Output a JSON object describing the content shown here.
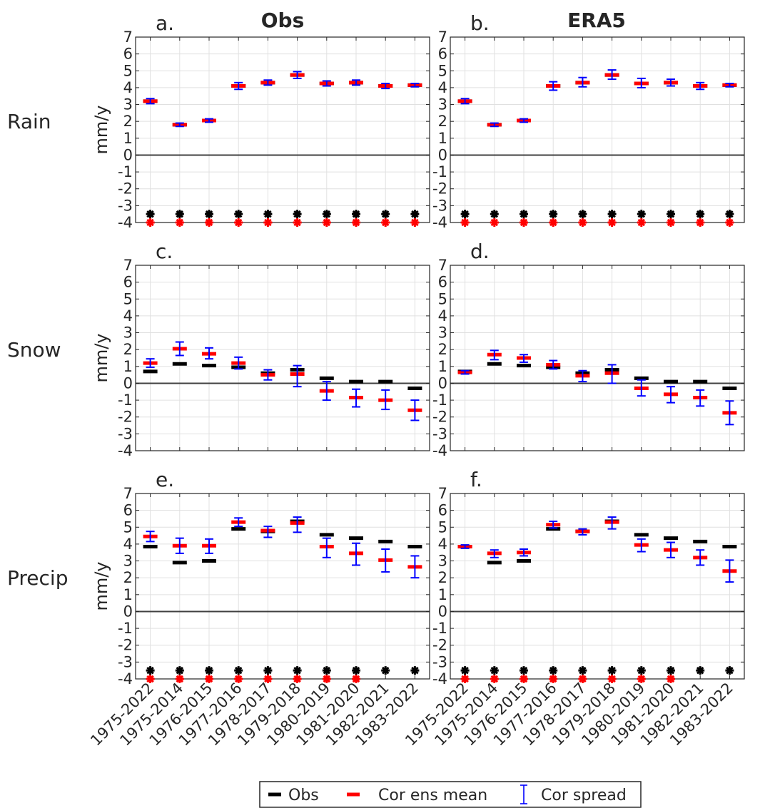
{
  "figure": {
    "column_titles": [
      "Obs",
      "ERA5"
    ],
    "row_labels": [
      "Rain",
      "Snow",
      "Precip"
    ],
    "ylabel": "mm/y",
    "legend": {
      "obs": "Obs",
      "mean": "Cor ens mean",
      "spread": "Cor spread"
    }
  },
  "chart_data": [
    {
      "panel": "a.",
      "type": "scatter",
      "title": "Obs",
      "row": "Rain",
      "ylabel": "mm/y",
      "categories": [
        "1975-2022",
        "1975-2014",
        "1976-2015",
        "1977-2016",
        "1978-2017",
        "1979-2018",
        "1980-2019",
        "1981-2020",
        "1982-2021",
        "1983-2022"
      ],
      "yticks": [
        7,
        6,
        5,
        4,
        3,
        2,
        1,
        0,
        -1,
        -2,
        -3,
        -4
      ],
      "ylim": [
        -4,
        7
      ],
      "grid": true,
      "series": [
        {
          "name": "Obs",
          "values": [
            3.2,
            1.8,
            2.05,
            4.1,
            4.3,
            4.75,
            4.25,
            4.3,
            4.1,
            4.15
          ]
        },
        {
          "name": "Cor ens mean",
          "values": [
            3.2,
            1.8,
            2.05,
            4.1,
            4.3,
            4.75,
            4.25,
            4.3,
            4.1,
            4.15
          ]
        },
        {
          "name": "Cor spread",
          "low": [
            3.05,
            1.7,
            1.95,
            3.9,
            4.15,
            4.55,
            4.1,
            4.15,
            3.95,
            4.05
          ],
          "high": [
            3.35,
            1.9,
            2.15,
            4.3,
            4.45,
            4.95,
            4.4,
            4.45,
            4.25,
            4.25
          ]
        }
      ],
      "markers": {
        "Obs": [
          -3.5,
          -3.5,
          -3.5,
          -3.5,
          -3.5,
          -3.5,
          -3.5,
          -3.5,
          -3.5,
          -3.5
        ],
        "Cor ens mean": [
          -4,
          -4,
          -4,
          -4,
          -4,
          -4,
          -4,
          -4,
          -4,
          -4
        ]
      }
    },
    {
      "panel": "b.",
      "type": "scatter",
      "title": "ERA5",
      "row": "Rain",
      "ylabel": "",
      "categories": [
        "1975-2022",
        "1975-2014",
        "1976-2015",
        "1977-2016",
        "1978-2017",
        "1979-2018",
        "1980-2019",
        "1981-2020",
        "1982-2021",
        "1983-2022"
      ],
      "yticks": [
        7,
        6,
        5,
        4,
        3,
        2,
        1,
        0,
        -1,
        -2,
        -3,
        -4
      ],
      "ylim": [
        -4,
        7
      ],
      "grid": true,
      "series": [
        {
          "name": "Obs",
          "values": [
            3.2,
            1.8,
            2.05,
            4.1,
            4.3,
            4.75,
            4.25,
            4.3,
            4.1,
            4.15
          ]
        },
        {
          "name": "Cor ens mean",
          "values": [
            3.2,
            1.8,
            2.05,
            4.1,
            4.3,
            4.75,
            4.25,
            4.3,
            4.1,
            4.15
          ]
        },
        {
          "name": "Cor spread",
          "low": [
            3.05,
            1.7,
            1.95,
            3.85,
            4.05,
            4.5,
            4.0,
            4.1,
            3.9,
            4.05
          ],
          "high": [
            3.35,
            1.9,
            2.15,
            4.35,
            4.6,
            5.05,
            4.55,
            4.5,
            4.3,
            4.25
          ]
        }
      ],
      "markers": {
        "Obs": [
          -3.5,
          -3.5,
          -3.5,
          -3.5,
          -3.5,
          -3.5,
          -3.5,
          -3.5,
          -3.5,
          -3.5
        ],
        "Cor ens mean": [
          -4,
          -4,
          -4,
          -4,
          -4,
          -4,
          -4,
          -4,
          -4,
          -4
        ]
      }
    },
    {
      "panel": "c.",
      "type": "scatter",
      "title": "",
      "row": "Snow",
      "ylabel": "mm/y",
      "categories": [
        "1975-2022",
        "1975-2014",
        "1976-2015",
        "1977-2016",
        "1978-2017",
        "1979-2018",
        "1980-2019",
        "1981-2020",
        "1982-2021",
        "1983-2022"
      ],
      "yticks": [
        7,
        6,
        5,
        4,
        3,
        2,
        1,
        0,
        -1,
        -2,
        -3,
        -4
      ],
      "ylim": [
        -4,
        7
      ],
      "grid": true,
      "series": [
        {
          "name": "Obs",
          "values": [
            0.7,
            1.15,
            1.05,
            0.95,
            0.6,
            0.8,
            0.3,
            0.1,
            0.1,
            -0.3
          ]
        },
        {
          "name": "Cor ens mean",
          "values": [
            1.2,
            2.05,
            1.75,
            1.2,
            0.5,
            0.55,
            -0.45,
            -0.85,
            -1.0,
            -1.6
          ]
        },
        {
          "name": "Cor spread",
          "low": [
            0.95,
            1.65,
            1.45,
            0.85,
            0.2,
            -0.2,
            -1.0,
            -1.4,
            -1.55,
            -2.2
          ],
          "high": [
            1.45,
            2.45,
            2.1,
            1.55,
            0.8,
            1.05,
            0.1,
            -0.35,
            -0.4,
            -1.0
          ]
        }
      ]
    },
    {
      "panel": "d.",
      "type": "scatter",
      "title": "",
      "row": "Snow",
      "ylabel": "",
      "categories": [
        "1975-2022",
        "1975-2014",
        "1976-2015",
        "1977-2016",
        "1978-2017",
        "1979-2018",
        "1980-2019",
        "1981-2020",
        "1982-2021",
        "1983-2022"
      ],
      "yticks": [
        7,
        6,
        5,
        4,
        3,
        2,
        1,
        0,
        -1,
        -2,
        -3,
        -4
      ],
      "ylim": [
        -4,
        7
      ],
      "grid": true,
      "series": [
        {
          "name": "Obs",
          "values": [
            0.7,
            1.15,
            1.05,
            0.95,
            0.6,
            0.8,
            0.3,
            0.1,
            0.1,
            -0.3
          ]
        },
        {
          "name": "Cor ens mean",
          "values": [
            0.65,
            1.7,
            1.5,
            1.1,
            0.45,
            0.6,
            -0.3,
            -0.65,
            -0.85,
            -1.75
          ]
        },
        {
          "name": "Cor spread",
          "low": [
            0.55,
            1.4,
            1.25,
            0.85,
            0.1,
            0.0,
            -0.75,
            -1.15,
            -1.35,
            -2.45
          ],
          "high": [
            0.75,
            1.95,
            1.7,
            1.35,
            0.75,
            1.1,
            0.2,
            -0.2,
            -0.4,
            -1.05
          ]
        }
      ]
    },
    {
      "panel": "e.",
      "type": "scatter",
      "title": "",
      "row": "Precip",
      "ylabel": "mm/y",
      "categories": [
        "1975-2022",
        "1975-2014",
        "1976-2015",
        "1977-2016",
        "1978-2017",
        "1979-2018",
        "1980-2019",
        "1981-2020",
        "1982-2021",
        "1983-2022"
      ],
      "yticks": [
        7,
        6,
        5,
        4,
        3,
        2,
        1,
        0,
        -1,
        -2,
        -3,
        -4
      ],
      "ylim": [
        -4,
        7
      ],
      "grid": true,
      "series": [
        {
          "name": "Obs",
          "values": [
            3.85,
            2.9,
            3.0,
            4.9,
            4.75,
            5.35,
            4.55,
            4.35,
            4.15,
            3.85
          ]
        },
        {
          "name": "Cor ens mean",
          "values": [
            4.45,
            3.9,
            3.9,
            5.3,
            4.8,
            5.25,
            3.85,
            3.45,
            3.05,
            2.65
          ]
        },
        {
          "name": "Cor spread",
          "low": [
            4.15,
            3.45,
            3.45,
            5.05,
            4.4,
            4.7,
            3.2,
            2.75,
            2.35,
            2.0
          ],
          "high": [
            4.75,
            4.35,
            4.3,
            5.55,
            5.05,
            5.6,
            4.35,
            4.05,
            3.7,
            3.3
          ]
        }
      ],
      "markers": {
        "Obs": [
          -3.5,
          -3.5,
          -3.5,
          -3.5,
          -3.5,
          -3.5,
          -3.5,
          -3.5,
          -3.5,
          -3.5
        ],
        "Cor ens mean": [
          -4,
          -4,
          -4,
          -4,
          -4,
          -4,
          -4,
          -4,
          null,
          null
        ]
      }
    },
    {
      "panel": "f.",
      "type": "scatter",
      "title": "",
      "row": "Precip",
      "ylabel": "",
      "categories": [
        "1975-2022",
        "1975-2014",
        "1976-2015",
        "1977-2016",
        "1978-2017",
        "1979-2018",
        "1980-2019",
        "1981-2020",
        "1982-2021",
        "1983-2022"
      ],
      "yticks": [
        7,
        6,
        5,
        4,
        3,
        2,
        1,
        0,
        -1,
        -2,
        -3,
        -4
      ],
      "ylim": [
        -4,
        7
      ],
      "grid": true,
      "series": [
        {
          "name": "Obs",
          "values": [
            3.85,
            2.9,
            3.0,
            4.9,
            4.75,
            5.35,
            4.55,
            4.35,
            4.15,
            3.85
          ]
        },
        {
          "name": "Cor ens mean",
          "values": [
            3.85,
            3.45,
            3.5,
            5.15,
            4.75,
            5.3,
            3.95,
            3.65,
            3.2,
            2.4
          ]
        },
        {
          "name": "Cor spread",
          "low": [
            3.75,
            3.2,
            3.3,
            4.95,
            4.55,
            4.9,
            3.55,
            3.2,
            2.75,
            1.75
          ],
          "high": [
            3.95,
            3.65,
            3.7,
            5.35,
            4.9,
            5.6,
            4.3,
            4.1,
            3.65,
            3.05
          ]
        }
      ],
      "markers": {
        "Obs": [
          -3.5,
          -3.5,
          -3.5,
          -3.5,
          -3.5,
          -3.5,
          -3.5,
          -3.5,
          -3.5,
          -3.5
        ],
        "Cor ens mean": [
          -4,
          -4,
          -4,
          -4,
          -4,
          -4,
          -4,
          -4,
          null,
          null
        ]
      }
    }
  ]
}
